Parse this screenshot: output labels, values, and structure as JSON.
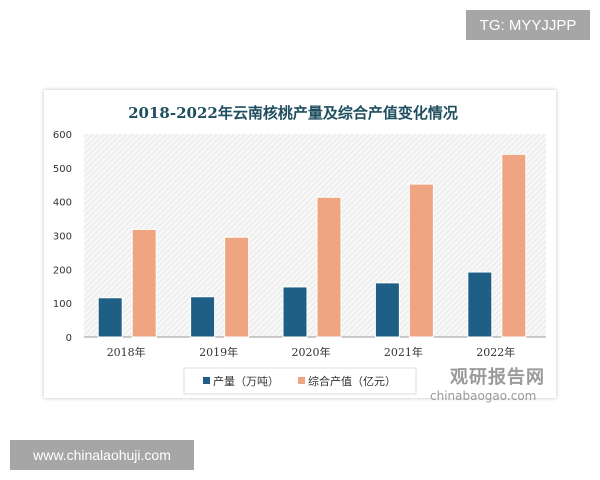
{
  "watermarks": {
    "top": "TG: MYYJJPP",
    "bottom": "www.chinalaohuji.com"
  },
  "logo": {
    "cn": "观研报告网",
    "en": "chinabaogao.com"
  },
  "chart_data": {
    "type": "bar",
    "title": "2018-2022年云南核桃产量及综合产值变化情况",
    "categories": [
      "2018年",
      "2019年",
      "2020年",
      "2021年",
      "2022年"
    ],
    "series": [
      {
        "name": "产量（万吨）",
        "values": [
          116,
          119,
          148,
          160,
          192
        ],
        "color": "#1f5f85"
      },
      {
        "name": "综合产值（亿元）",
        "values": [
          318,
          295,
          413,
          452,
          540
        ],
        "color": "#f0a582"
      }
    ],
    "yticks": [
      "0",
      "100",
      "200",
      "300",
      "400",
      "500",
      "600"
    ],
    "ylim": [
      0,
      600
    ],
    "legend": "bottom",
    "grid": false
  }
}
